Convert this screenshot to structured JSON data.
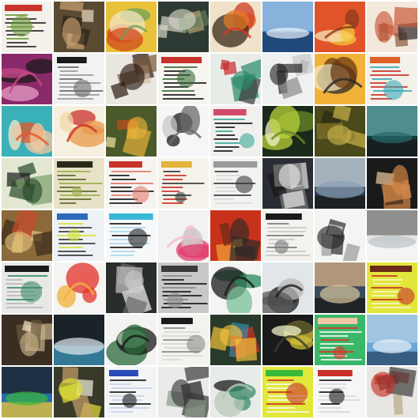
{
  "grid": {
    "rows": 8,
    "cols": 8,
    "tiles": [
      {
        "bg": "#f4f1ea",
        "c1": "#c8342c",
        "c2": "#6a9a3a",
        "c3": "#2a2a2a",
        "kind": "doc"
      },
      {
        "bg": "#5a4a32",
        "c1": "#c9a070",
        "c2": "#2b2117",
        "c3": "#e8dcc2",
        "kind": "photo"
      },
      {
        "bg": "#e8c23a",
        "c1": "#d24a1e",
        "c2": "#6fa05a",
        "c3": "#f1e6c4",
        "kind": "blob"
      },
      {
        "bg": "#2c3a33",
        "c1": "#d6d6c6",
        "c2": "#5e7a5a",
        "c3": "#b0a070",
        "kind": "photo"
      },
      {
        "bg": "#f0e2c8",
        "c1": "#e07a28",
        "c2": "#d23a24",
        "c3": "#3a2a1a",
        "kind": "blob"
      },
      {
        "bg": "#3c7ec4",
        "c1": "#eaf2fa",
        "c2": "#1c3c6a",
        "c3": "#a8c8e6",
        "kind": "sky"
      },
      {
        "bg": "#e1542a",
        "c1": "#f4c63a",
        "c2": "#8a3a1a",
        "c3": "#f6e4b6",
        "kind": "blob"
      },
      {
        "bg": "#f2e8dc",
        "c1": "#c85a3a",
        "c2": "#8a5a3a",
        "c3": "#2e2a28",
        "kind": "photo"
      },
      {
        "bg": "#8a2a6a",
        "c1": "#1a1a1a",
        "c2": "#c84a8a",
        "c3": "#e6a0c8",
        "kind": "blob"
      },
      {
        "bg": "#f2f2f2",
        "c1": "#1a1a1a",
        "c2": "#6a6a6a",
        "c3": "#9a9a9a",
        "kind": "doc"
      },
      {
        "bg": "#eae6e0",
        "c1": "#2a1a12",
        "c2": "#7a5a3a",
        "c3": "#d2c0a8",
        "kind": "photo"
      },
      {
        "bg": "#f6f4ee",
        "c1": "#c8322a",
        "c2": "#3a6a3a",
        "c3": "#1a1a1a",
        "kind": "doc"
      },
      {
        "bg": "#e8ece6",
        "c1": "#2a8a6a",
        "c2": "#c82a2a",
        "c3": "#3a3a3a",
        "kind": "photo"
      },
      {
        "bg": "#eef0f2",
        "c1": "#2a2a2a",
        "c2": "#8a8a8a",
        "c3": "#c8c8c8",
        "kind": "photo"
      },
      {
        "bg": "#f2b23a",
        "c1": "#6a3a12",
        "c2": "#2a2a2a",
        "c3": "#f6e6b6",
        "kind": "blob"
      },
      {
        "bg": "#f4f0ea",
        "c1": "#e0602a",
        "c2": "#3aa8b8",
        "c3": "#c8322a",
        "kind": "doc"
      },
      {
        "bg": "#3ab0b8",
        "c1": "#f2c8a0",
        "c2": "#e2562a",
        "c3": "#f6e8c8",
        "kind": "blob"
      },
      {
        "bg": "#f6f0e0",
        "c1": "#e89a4a",
        "c2": "#c8322a",
        "c3": "#f2d8a8",
        "kind": "blob"
      },
      {
        "bg": "#4a5a2a",
        "c1": "#e6b23a",
        "c2": "#c84a1a",
        "c3": "#f2e2a8",
        "kind": "photo"
      },
      {
        "bg": "#f6f6f6",
        "c1": "#1a1a1a",
        "c2": "#6a6a6a",
        "c3": "#c8c8c8",
        "kind": "blob"
      },
      {
        "bg": "#f2f0ee",
        "c1": "#d24a6a",
        "c2": "#3aa89a",
        "c3": "#1a1a1a",
        "kind": "doc"
      },
      {
        "bg": "#1a2a1a",
        "c1": "#b8d23a",
        "c2": "#6a8a2a",
        "c3": "#f2f2c8",
        "kind": "blob"
      },
      {
        "bg": "#4a4a1a",
        "c1": "#c8b24a",
        "c2": "#8a7a2a",
        "c3": "#2a2a12",
        "kind": "photo"
      },
      {
        "bg": "#0e3a3a",
        "c1": "#2a6a6a",
        "c2": "#1a1a1a",
        "c3": "#6ab2b2",
        "kind": "sky"
      },
      {
        "bg": "#e2e8d2",
        "c1": "#2a4a2a",
        "c2": "#7aa06a",
        "c3": "#1a1a1a",
        "kind": "photo"
      },
      {
        "bg": "#e8e2c8",
        "c1": "#2a2a1a",
        "c2": "#9ab04a",
        "c3": "#5a6a2a",
        "kind": "doc"
      },
      {
        "bg": "#f6f4f2",
        "c1": "#c8322a",
        "c2": "#e27a6a",
        "c3": "#1a1a1a",
        "kind": "doc"
      },
      {
        "bg": "#f4f2ea",
        "c1": "#e2b23a",
        "c2": "#3a3a3a",
        "c3": "#c8322a",
        "kind": "doc"
      },
      {
        "bg": "#f2f2f0",
        "c1": "#9a9a9a",
        "c2": "#3a3a3a",
        "c3": "#d8d8d8",
        "kind": "doc"
      },
      {
        "bg": "#2a2e34",
        "c1": "#e8e8e8",
        "c2": "#7a7a7a",
        "c3": "#1a1a1a",
        "kind": "photo"
      },
      {
        "bg": "#2a3a4a",
        "c1": "#8aa0b8",
        "c2": "#1a1a1a",
        "c3": "#d8e2ea",
        "kind": "sky"
      },
      {
        "bg": "#1a1a1a",
        "c1": "#d88a4a",
        "c2": "#3a2a1a",
        "c3": "#f2c8a0",
        "kind": "photo"
      },
      {
        "bg": "#8a6a3a",
        "c1": "#e2c27a",
        "c2": "#3a2a1a",
        "c3": "#c84a2a",
        "kind": "photo"
      },
      {
        "bg": "#eef2f6",
        "c1": "#2a6ab8",
        "c2": "#d2e23a",
        "c3": "#3a3a3a",
        "kind": "doc"
      },
      {
        "bg": "#f6f8fa",
        "c1": "#3ab8d8",
        "c2": "#1a1a1a",
        "c3": "#a8d8e8",
        "kind": "doc"
      },
      {
        "bg": "#f2f2f2",
        "c1": "#e2386a",
        "c2": "#f6b8c8",
        "c3": "#c8c8c8",
        "kind": "blob"
      },
      {
        "bg": "#c8321a",
        "c1": "#2a2a2a",
        "c2": "#f2a23a",
        "c3": "#6a2a1a",
        "kind": "photo"
      },
      {
        "bg": "#f4f2ee",
        "c1": "#1a1a1a",
        "c2": "#7a7a7a",
        "c3": "#c8c8c8",
        "kind": "doc"
      },
      {
        "bg": "#f4f4f4",
        "c1": "#2a2a2a",
        "c2": "#9a9a9a",
        "c3": "#dadada",
        "kind": "photo"
      },
      {
        "bg": "#e6e6e4",
        "c1": "#bac2c8",
        "c2": "#f8f8f8",
        "c3": "#6a6a6a",
        "kind": "sky"
      },
      {
        "bg": "#e8e8e6",
        "c1": "#1a1a1a",
        "c2": "#3a8a6a",
        "c3": "#b8b8b8",
        "kind": "doc"
      },
      {
        "bg": "#f6f4f2",
        "c1": "#e2322a",
        "c2": "#f2b23a",
        "c3": "#f8e2d8",
        "kind": "blob"
      },
      {
        "bg": "#2a2e2a",
        "c1": "#c8c8c8",
        "c2": "#6a6a6a",
        "c3": "#f2f2f2",
        "kind": "photo"
      },
      {
        "bg": "#c8c8c6",
        "c1": "#3a3a3a",
        "c2": "#8a8a8a",
        "c3": "#1a1a1a",
        "kind": "doc"
      },
      {
        "bg": "#f4f4f2",
        "c1": "#2a8a5a",
        "c2": "#1a1a1a",
        "c3": "#7ac29a",
        "kind": "blob"
      },
      {
        "bg": "#e2e6ea",
        "c1": "#5a5a5a",
        "c2": "#1a1a1a",
        "c3": "#b8b8b8",
        "kind": "blob"
      },
      {
        "bg": "#3a4a5a",
        "c1": "#d8c8a0",
        "c2": "#1a1a1a",
        "c3": "#e2b88a",
        "kind": "sky"
      },
      {
        "bg": "#e2e63a",
        "c1": "#6a2a1a",
        "c2": "#c8322a",
        "c3": "#f6f6c8",
        "kind": "doc"
      },
      {
        "bg": "#3a2e22",
        "c1": "#c8b08a",
        "c2": "#6a5a3a",
        "c3": "#f2e2c8",
        "kind": "photo"
      },
      {
        "bg": "#1a3a4a",
        "c1": "#e2e8ea",
        "c2": "#3a8aa8",
        "c3": "#1a1a1a",
        "kind": "sky"
      },
      {
        "bg": "#f2f4f2",
        "c1": "#2a6a3a",
        "c2": "#1a1a1a",
        "c3": "#a8c8a8",
        "kind": "blob"
      },
      {
        "bg": "#f4f2ee",
        "c1": "#1a1a1a",
        "c2": "#8a8a8a",
        "c3": "#d8d8d8",
        "kind": "doc"
      },
      {
        "bg": "#2a3a2a",
        "c1": "#f2c23a",
        "c2": "#3a8aa8",
        "c3": "#d2322a",
        "kind": "photo"
      },
      {
        "bg": "#1a1a1a",
        "c1": "#d2c23a",
        "c2": "#3a3a2a",
        "c3": "#f2f2c8",
        "kind": "blob"
      },
      {
        "bg": "#3ab86a",
        "c1": "#f4c6a8",
        "c2": "#e2322a",
        "c3": "#f6f6f6",
        "kind": "doc"
      },
      {
        "bg": "#6aa8d8",
        "c1": "#e8f0f6",
        "c2": "#2a4a6a",
        "c3": "#b8d2e8",
        "kind": "sky"
      },
      {
        "bg": "#2a6aa8",
        "c1": "#3ab83a",
        "c2": "#e2c23a",
        "c3": "#1a1a1a",
        "kind": "sky"
      },
      {
        "bg": "#3a3a2a",
        "c1": "#e2e23a",
        "c2": "#c8a06a",
        "c3": "#f2f2e2",
        "kind": "photo"
      },
      {
        "bg": "#f2f4f6",
        "c1": "#2a4ab8",
        "c2": "#1a1a1a",
        "c3": "#c8d2e8",
        "kind": "doc"
      },
      {
        "bg": "#eaeae8",
        "c1": "#3a3a3a",
        "c2": "#8a9a8a",
        "c3": "#1a1a1a",
        "kind": "photo"
      },
      {
        "bg": "#e8ece8",
        "c1": "#3a8a6a",
        "c2": "#b8c8b8",
        "c3": "#1a1a1a",
        "kind": "blob"
      },
      {
        "bg": "#e2e83a",
        "c1": "#3ab83a",
        "c2": "#c8322a",
        "c3": "#f6f6f6",
        "kind": "doc"
      },
      {
        "bg": "#f6f6f6",
        "c1": "#c8322a",
        "c2": "#1a1a1a",
        "c3": "#d8d8d8",
        "kind": "doc"
      },
      {
        "bg": "#e8e6e2",
        "c1": "#c8322a",
        "c2": "#3a3a3a",
        "c3": "#b8a888",
        "kind": "photo"
      }
    ]
  }
}
